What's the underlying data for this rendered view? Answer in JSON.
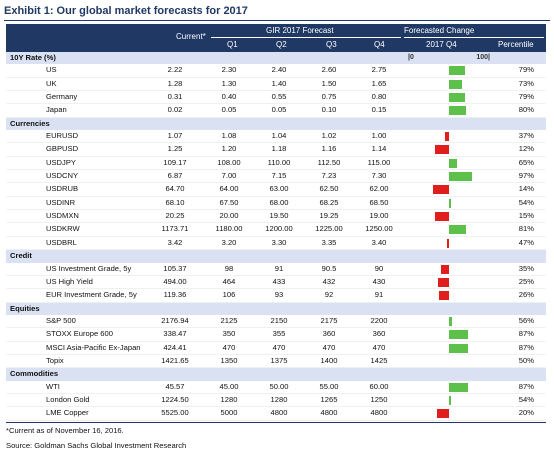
{
  "title": "Exhibit 1: Our global market forecasts for 2017",
  "header": {
    "gir": "GIR 2017 Forecast",
    "forecasted_change": "Forecasted Change",
    "current": "Current*",
    "q1": "Q1",
    "q2": "Q2",
    "q3": "Q3",
    "q4": "Q4",
    "q4_2017": "2017 Q4",
    "percentile": "Percentile"
  },
  "scale": {
    "left": "|0",
    "right": "100|"
  },
  "colors": {
    "header_bg": "#1f3864",
    "section_bg": "#d9e1f2",
    "positive": "#5cc04a",
    "negative": "#e01e1e"
  },
  "sections": [
    {
      "label": "10Y Rate (%)",
      "rows": [
        {
          "name": "US",
          "current": "2.22",
          "q1": "2.30",
          "q2": "2.40",
          "q3": "2.60",
          "q4": "2.75",
          "percentile": "79%",
          "change": 0.36
        },
        {
          "name": "UK",
          "current": "1.28",
          "q1": "1.30",
          "q2": "1.40",
          "q3": "1.50",
          "q4": "1.65",
          "percentile": "73%",
          "change": 0.29
        },
        {
          "name": "Germany",
          "current": "0.31",
          "q1": "0.40",
          "q2": "0.55",
          "q3": "0.75",
          "q4": "0.80",
          "percentile": "79%",
          "change": 0.36
        },
        {
          "name": "Japan",
          "current": "0.02",
          "q1": "0.05",
          "q2": "0.05",
          "q3": "0.10",
          "q4": "0.15",
          "percentile": "80%",
          "change": 0.37
        }
      ]
    },
    {
      "label": "Currencies",
      "rows": [
        {
          "name": "EURUSD",
          "current": "1.07",
          "q1": "1.08",
          "q2": "1.04",
          "q3": "1.02",
          "q4": "1.00",
          "percentile": "37%",
          "change": -0.1
        },
        {
          "name": "GBPUSD",
          "current": "1.25",
          "q1": "1.20",
          "q2": "1.18",
          "q3": "1.16",
          "q4": "1.14",
          "percentile": "12%",
          "change": -0.32
        },
        {
          "name": "USDJPY",
          "current": "109.17",
          "q1": "108.00",
          "q2": "110.00",
          "q3": "112.50",
          "q4": "115.00",
          "percentile": "65%",
          "change": 0.18
        },
        {
          "name": "USDCNY",
          "current": "6.87",
          "q1": "7.00",
          "q2": "7.15",
          "q3": "7.23",
          "q4": "7.30",
          "percentile": "97%",
          "change": 0.52
        },
        {
          "name": "USDRUB",
          "current": "64.70",
          "q1": "64.00",
          "q2": "63.00",
          "q3": "62.50",
          "q4": "62.00",
          "percentile": "14%",
          "change": -0.36
        },
        {
          "name": "USDINR",
          "current": "68.10",
          "q1": "67.50",
          "q2": "68.00",
          "q3": "68.25",
          "q4": "68.50",
          "percentile": "54%",
          "change": 0.05
        },
        {
          "name": "USDMXN",
          "current": "20.25",
          "q1": "20.00",
          "q2": "19.50",
          "q3": "19.25",
          "q4": "19.00",
          "percentile": "15%",
          "change": -0.32
        },
        {
          "name": "USDKRW",
          "current": "1173.71",
          "q1": "1180.00",
          "q2": "1200.00",
          "q3": "1225.00",
          "q4": "1250.00",
          "percentile": "81%",
          "change": 0.38
        },
        {
          "name": "USDBRL",
          "current": "3.42",
          "q1": "3.20",
          "q2": "3.30",
          "q3": "3.35",
          "q4": "3.40",
          "percentile": "47%",
          "change": -0.05
        }
      ]
    },
    {
      "label": "Credit",
      "rows": [
        {
          "name": "US Investment Grade, 5y",
          "current": "105.37",
          "q1": "98",
          "q2": "91",
          "q3": "90.5",
          "q4": "90",
          "percentile": "35%",
          "change": -0.18
        },
        {
          "name": "US High Yield",
          "current": "494.00",
          "q1": "464",
          "q2": "433",
          "q3": "432",
          "q4": "430",
          "percentile": "25%",
          "change": -0.24
        },
        {
          "name": "EUR Investment Grade, 5y",
          "current": "119.36",
          "q1": "106",
          "q2": "93",
          "q3": "92",
          "q4": "91",
          "percentile": "26%",
          "change": -0.22
        }
      ]
    },
    {
      "label": "Equities",
      "rows": [
        {
          "name": "S&P 500",
          "current": "2176.94",
          "q1": "2125",
          "q2": "2150",
          "q3": "2175",
          "q4": "2200",
          "percentile": "56%",
          "change": 0.06
        },
        {
          "name": "STOXX Europe 600",
          "current": "338.47",
          "q1": "350",
          "q2": "355",
          "q3": "360",
          "q4": "360",
          "percentile": "87%",
          "change": 0.43
        },
        {
          "name": "MSCI Asia-Pacific Ex-Japan",
          "current": "424.41",
          "q1": "470",
          "q2": "470",
          "q3": "470",
          "q4": "470",
          "percentile": "87%",
          "change": 0.43
        },
        {
          "name": "Topix",
          "current": "1421.65",
          "q1": "1350",
          "q2": "1375",
          "q3": "1400",
          "q4": "1425",
          "percentile": "50%",
          "change": 0.0
        }
      ]
    },
    {
      "label": "Commodities",
      "rows": [
        {
          "name": "WTI",
          "current": "45.57",
          "q1": "45.00",
          "q2": "50.00",
          "q3": "55.00",
          "q4": "60.00",
          "percentile": "87%",
          "change": 0.43
        },
        {
          "name": "London Gold",
          "current": "1224.50",
          "q1": "1280",
          "q2": "1280",
          "q3": "1265",
          "q4": "1250",
          "percentile": "54%",
          "change": 0.05
        },
        {
          "name": "LME Copper",
          "current": "5525.00",
          "q1": "5000",
          "q2": "4800",
          "q3": "4800",
          "q4": "4800",
          "percentile": "20%",
          "change": -0.26
        }
      ]
    }
  ],
  "footnote": "*Current as of November 16, 2016.",
  "source": "Source: Goldman Sachs Global Investment Research"
}
